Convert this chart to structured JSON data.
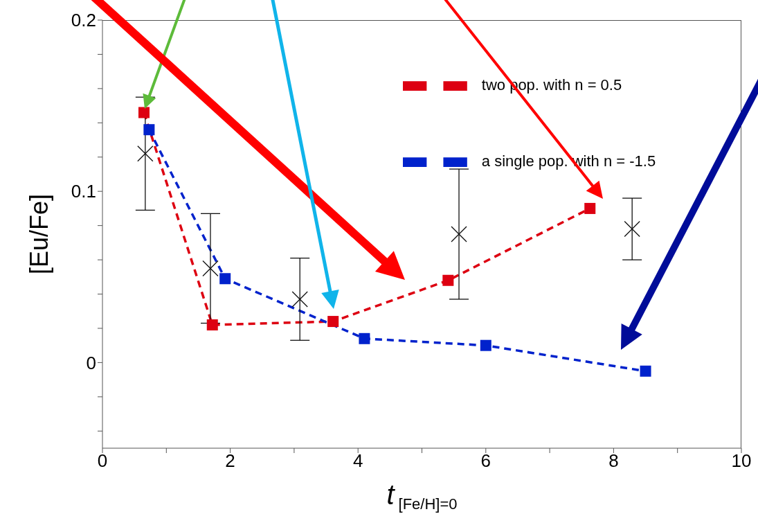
{
  "chart_data": {
    "type": "line",
    "xlabel": "t$_{[Fe/H]=0}$",
    "ylabel": "[Eu/Fe]",
    "xlim": [
      0,
      10
    ],
    "ylim": [
      -0.05,
      0.2
    ],
    "xticks": [
      0,
      {
        "value": 1,
        "label": null
      },
      2,
      {
        "value": 3,
        "label": null
      },
      4,
      {
        "value": 5,
        "label": null
      },
      6,
      {
        "value": 7,
        "label": null
      },
      8,
      {
        "value": 9,
        "label": null
      },
      10
    ],
    "yticks": [
      {
        "value": -0.04,
        "label": null
      },
      {
        "value": -0.02,
        "label": null
      },
      0,
      {
        "value": 0.02,
        "label": null
      },
      {
        "value": 0.04,
        "label": null
      },
      {
        "value": 0.06,
        "label": null
      },
      {
        "value": 0.08,
        "label": null
      },
      0.1,
      {
        "value": 0.12,
        "label": null
      },
      {
        "value": 0.14,
        "label": null
      },
      {
        "value": 0.16,
        "label": null
      },
      {
        "value": 0.18,
        "label": null
      },
      0.2
    ],
    "grid": false,
    "legend": "top right",
    "series": [
      {
        "name": "two pop. with n = 0.5",
        "color": "#dd0011",
        "marker": "square",
        "line_style": "dashed",
        "x": [
          0.65,
          1.72,
          3.61,
          5.41,
          7.63
        ],
        "values": [
          0.146,
          0.022,
          0.024,
          0.048,
          0.09
        ]
      },
      {
        "name": "a single pop. with n = -1.5",
        "color": "#0022cc",
        "marker": "square",
        "line_style": "dashed",
        "x": [
          0.73,
          1.92,
          4.1,
          6.0,
          8.5
        ],
        "values": [
          0.136,
          0.049,
          0.014,
          0.01,
          -0.005
        ]
      },
      {
        "type": "scatter",
        "color": "#111111",
        "marker": "cross",
        "x": [
          0.67,
          1.69,
          3.09,
          5.58,
          8.29
        ],
        "values": [
          0.122,
          0.055,
          0.037,
          0.075,
          0.078
        ],
        "errors": [
          0.033,
          0.032,
          0.024,
          0.038,
          0.018
        ]
      }
    ]
  }
}
